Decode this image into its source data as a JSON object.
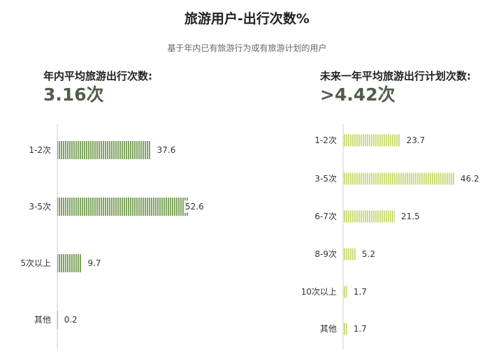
{
  "title": "旅游用户-出行次数%",
  "subtitle": "基于年内已有旅游行为或有旅游计划的用户",
  "left": {
    "label": "年内平均旅游出行次数:",
    "value": "3.16次"
  },
  "right": {
    "label": "未来一年平均旅游出行计划次数:",
    "value": ">4.42次"
  },
  "colors": {
    "left_bar": "#7ea35f",
    "right_bar": "#c9dc7a",
    "axis": "#cccccc"
  },
  "chart_data": [
    {
      "type": "bar",
      "orientation": "horizontal",
      "categories": [
        "1-2次",
        "3-5次",
        "5次以上",
        "其他"
      ],
      "values": [
        37.6,
        52.6,
        9.7,
        0.2
      ],
      "xlim": [
        0,
        52.6
      ],
      "grid": false
    },
    {
      "type": "bar",
      "orientation": "horizontal",
      "categories": [
        "1-2次",
        "3-5次",
        "6-7次",
        "8-9次",
        "10次以上",
        "其他"
      ],
      "values": [
        23.7,
        46.2,
        21.5,
        5.2,
        1.7,
        1.7
      ],
      "xlim": [
        0,
        46.2
      ],
      "grid": false
    }
  ]
}
